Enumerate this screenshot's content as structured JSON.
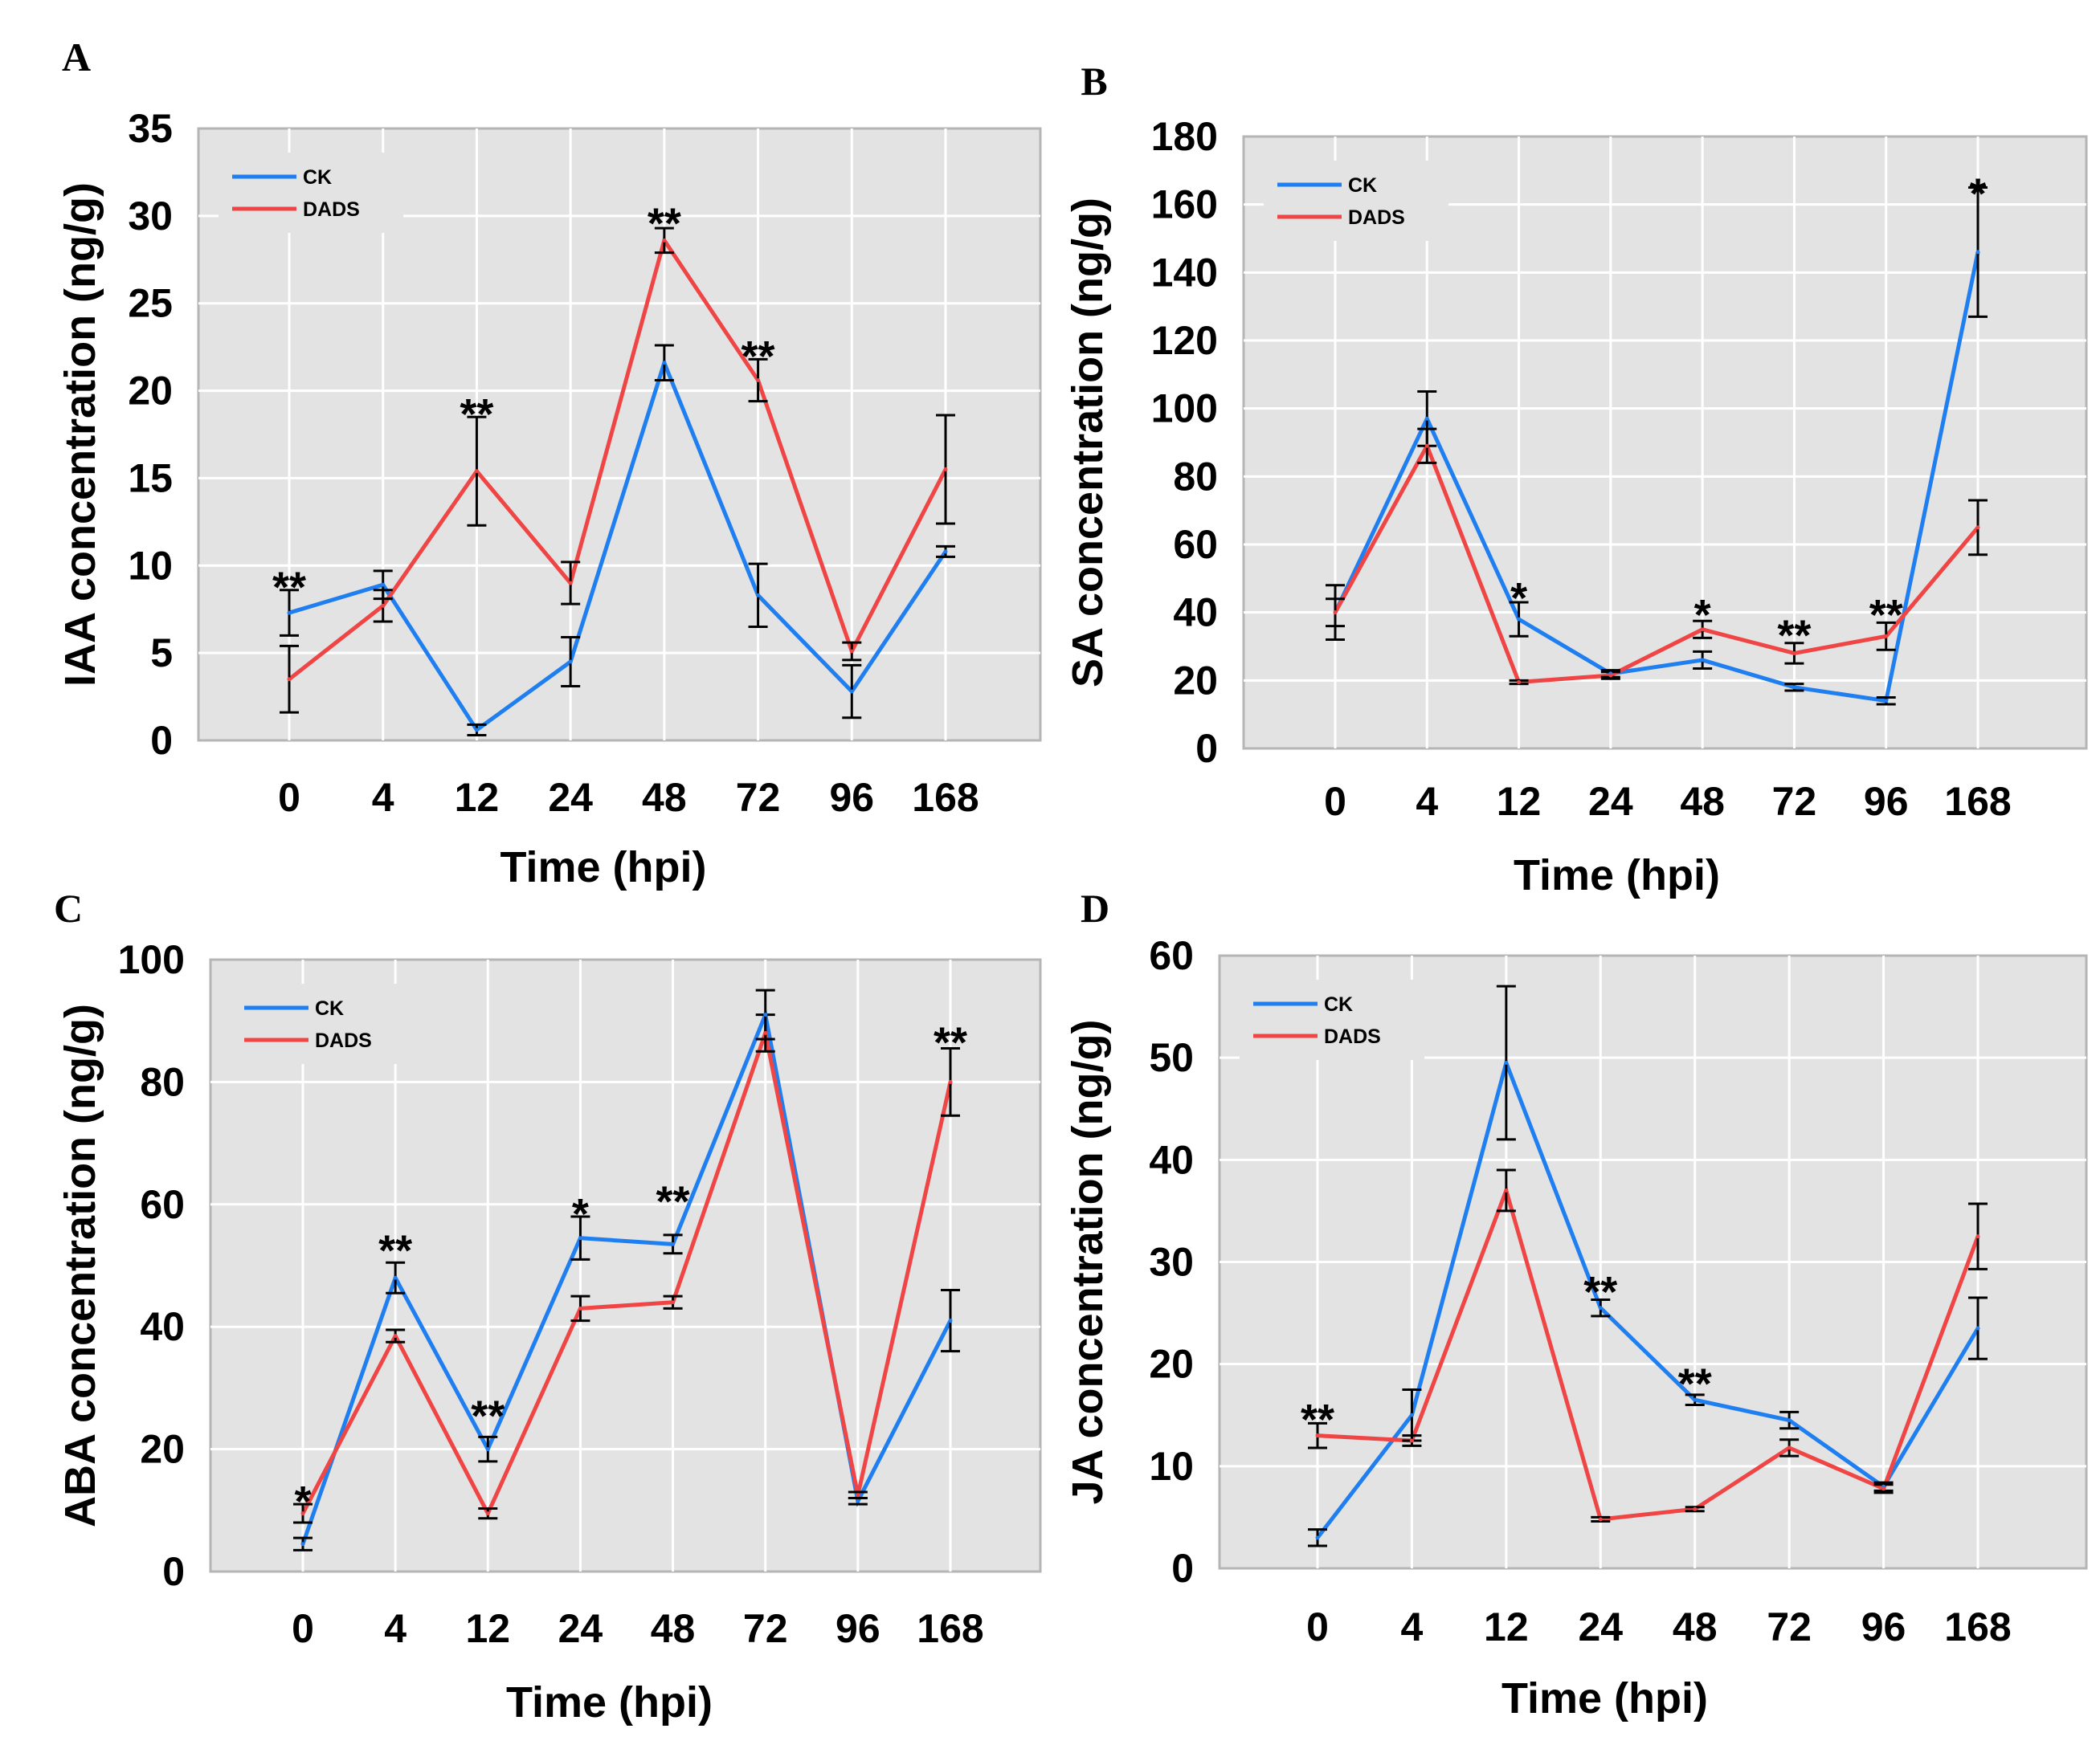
{
  "colors": {
    "CK": "#1f7ff0",
    "DADS": "#f04545",
    "plot_bg": "#e3e3e3",
    "grid": "#ffffff",
    "frame": "#b5b5b5"
  },
  "chart_data": [
    {
      "panel": "A",
      "type": "line",
      "categories": [
        "0",
        "4",
        "12",
        "24",
        "48",
        "72",
        "96",
        "168"
      ],
      "xlabel": "Time (hpi)",
      "ylabel": "IAA concentration (ng/g)",
      "ylim": [
        0,
        35
      ],
      "yticks": [
        0,
        5,
        10,
        15,
        20,
        25,
        30,
        35
      ],
      "grid": true,
      "legend": "top-left",
      "series": [
        {
          "name": "CK",
          "values": [
            7.3,
            8.9,
            0.6,
            4.5,
            21.6,
            8.3,
            2.8,
            10.8
          ],
          "errors": [
            1.3,
            0.8,
            0.3,
            1.4,
            1.0,
            1.8,
            1.5,
            0.3
          ]
        },
        {
          "name": "DADS",
          "values": [
            3.5,
            7.7,
            15.4,
            9.0,
            28.6,
            20.6,
            5.1,
            15.5
          ],
          "errors": [
            1.9,
            0.9,
            3.1,
            1.2,
            0.7,
            1.2,
            0.5,
            3.1
          ]
        }
      ],
      "annotations": [
        {
          "category": "0",
          "text": "**",
          "value": 9.3
        },
        {
          "category": "12",
          "text": "**",
          "value": 19.2
        },
        {
          "category": "48",
          "text": "**",
          "value": 30.1
        },
        {
          "category": "72",
          "text": "**",
          "value": 22.5
        }
      ]
    },
    {
      "panel": "B",
      "type": "line",
      "categories": [
        "0",
        "4",
        "12",
        "24",
        "48",
        "72",
        "96",
        "168"
      ],
      "xlabel": "Time (hpi)",
      "ylabel": "SA concentration (ng/g)",
      "ylim": [
        0,
        180
      ],
      "yticks": [
        0,
        20,
        40,
        60,
        80,
        100,
        120,
        140,
        160,
        180
      ],
      "grid": true,
      "legend": "top-left",
      "series": [
        {
          "name": "CK",
          "values": [
            40,
            97,
            38,
            22,
            26,
            18,
            14,
            146
          ],
          "errors": [
            8,
            8,
            5,
            1,
            2.5,
            1,
            1,
            19
          ]
        },
        {
          "name": "DADS",
          "values": [
            40,
            89,
            19.5,
            21.5,
            35,
            28,
            33,
            65
          ],
          "errors": [
            4,
            5,
            0.5,
            1,
            2.5,
            3,
            4,
            8
          ]
        }
      ],
      "annotations": [
        {
          "category": "12",
          "text": "*",
          "value": 47
        },
        {
          "category": "48",
          "text": "*",
          "value": 42
        },
        {
          "category": "72",
          "text": "**",
          "value": 36
        },
        {
          "category": "96",
          "text": "**",
          "value": 42
        },
        {
          "category": "168",
          "text": "*",
          "value": 166
        }
      ]
    },
    {
      "panel": "C",
      "type": "line",
      "categories": [
        "0",
        "4",
        "12",
        "24",
        "48",
        "72",
        "96",
        "168"
      ],
      "xlabel": "Time (hpi)",
      "ylabel": "ABA concentration (ng/g)",
      "ylim": [
        0,
        100
      ],
      "yticks": [
        0,
        20,
        40,
        60,
        80,
        100
      ],
      "grid": true,
      "legend": "top-left",
      "series": [
        {
          "name": "CK",
          "values": [
            4.5,
            48,
            20,
            54.5,
            53.5,
            91,
            11.5,
            41
          ],
          "errors": [
            1,
            2.5,
            2,
            3.5,
            1.5,
            4,
            0.5,
            5
          ]
        },
        {
          "name": "DADS",
          "values": [
            9.5,
            38.5,
            9.5,
            43,
            44,
            88,
            12.5,
            80
          ],
          "errors": [
            1.5,
            1,
            0.8,
            2,
            1,
            3,
            0.5,
            5.5
          ]
        }
      ],
      "annotations": [
        {
          "category": "0",
          "text": "*",
          "value": 13
        },
        {
          "category": "4",
          "text": "**",
          "value": 54
        },
        {
          "category": "12",
          "text": "**",
          "value": 27
        },
        {
          "category": "24",
          "text": "*",
          "value": 60
        },
        {
          "category": "48",
          "text": "**",
          "value": 62
        },
        {
          "category": "168",
          "text": "**",
          "value": 88
        }
      ]
    },
    {
      "panel": "D",
      "type": "line",
      "categories": [
        "0",
        "4",
        "12",
        "24",
        "48",
        "72",
        "96",
        "168"
      ],
      "xlabel": "Time (hpi)",
      "ylabel": "JA concentration (ng/g)",
      "ylim": [
        0,
        60
      ],
      "yticks": [
        0,
        10,
        20,
        30,
        40,
        50,
        60
      ],
      "grid": true,
      "legend": "top-left",
      "series": [
        {
          "name": "CK",
          "values": [
            3,
            15,
            49.5,
            25.5,
            16.5,
            14.5,
            8,
            23.5
          ],
          "errors": [
            0.8,
            2.5,
            7.5,
            0.8,
            0.5,
            0.8,
            0.4,
            3
          ]
        },
        {
          "name": "DADS",
          "values": [
            13,
            12.5,
            37,
            4.8,
            5.8,
            11.8,
            7.8,
            32.5
          ],
          "errors": [
            1.2,
            0.5,
            2,
            0.2,
            0.2,
            0.8,
            0.4,
            3.2
          ]
        }
      ],
      "annotations": [
        {
          "category": "0",
          "text": "**",
          "value": 15.5
        },
        {
          "category": "24",
          "text": "**",
          "value": 28
        },
        {
          "category": "48",
          "text": "**",
          "value": 19
        }
      ]
    }
  ]
}
